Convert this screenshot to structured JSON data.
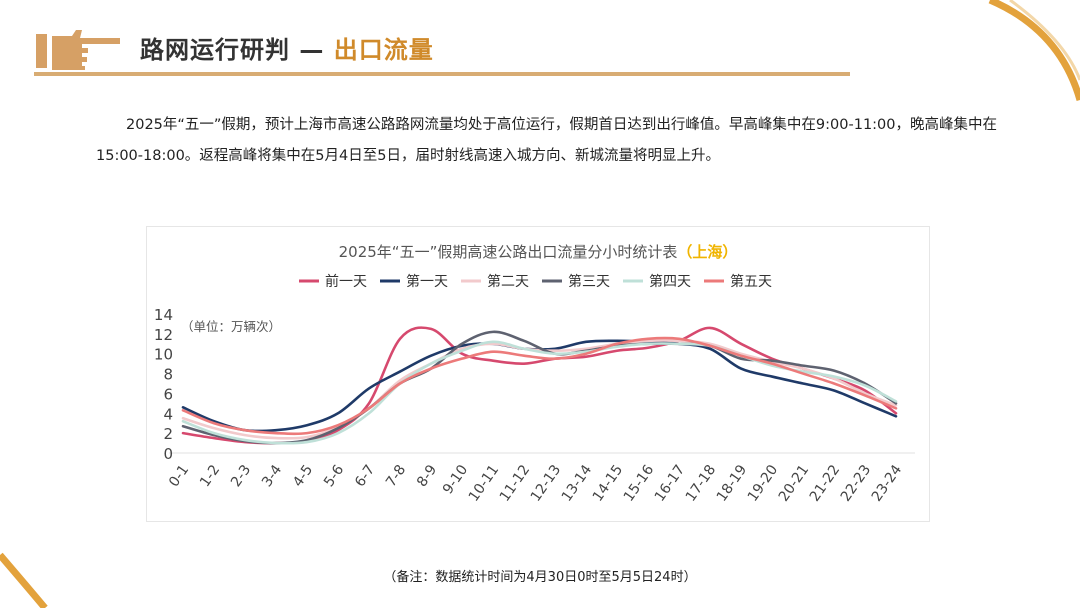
{
  "header": {
    "title_main": "路网运行研判 —",
    "title_accent": "出口流量",
    "accent_color": "#d08a2a",
    "icon": "pointing-hand-icon"
  },
  "paragraph": "2025年“五一”假期，预计上海市高速公路路网流量均处于高位运行，假期首日达到出行峰值。早高峰集中在9:00-11:00，晚高峰集中在15:00-18:00。返程高峰将集中在5月4日至5日，届时射线高速入城方向、新城流量将明显上升。",
  "note": "（备注：数据统计时间为4月30日0时至5月5日24时）",
  "chart_data": {
    "type": "line",
    "title": "2025年“五一”假期高速公路出口流量分小时统计表",
    "title_accent": "（上海）",
    "unit_label": "（单位：万辆次）",
    "ylim": [
      0,
      14
    ],
    "yticks": [
      0,
      2,
      4,
      6,
      8,
      10,
      12,
      14
    ],
    "grid": false,
    "legend": "top",
    "categories": [
      "0-1",
      "1-2",
      "2-3",
      "3-4",
      "4-5",
      "5-6",
      "6-7",
      "7-8",
      "8-9",
      "9-10",
      "10-11",
      "11-12",
      "12-13",
      "13-14",
      "14-15",
      "15-16",
      "16-17",
      "17-18",
      "18-19",
      "19-20",
      "20-21",
      "21-22",
      "22-23",
      "23-24"
    ],
    "series": [
      {
        "name": "前一天",
        "color": "#d6496e",
        "values": [
          2.0,
          1.5,
          1.1,
          1.0,
          1.2,
          2.3,
          5.0,
          11.5,
          12.5,
          10.0,
          9.3,
          9.0,
          9.5,
          9.7,
          10.3,
          10.6,
          11.3,
          12.6,
          11.0,
          9.5,
          8.5,
          7.5,
          6.3,
          4.0
        ]
      },
      {
        "name": "第一天",
        "color": "#1f3a68",
        "values": [
          4.6,
          3.2,
          2.3,
          2.3,
          2.8,
          4.0,
          6.5,
          8.2,
          9.8,
          10.8,
          11.0,
          10.5,
          10.5,
          11.2,
          11.3,
          11.2,
          11.0,
          10.5,
          8.5,
          7.7,
          7.0,
          6.3,
          5.0,
          3.7
        ]
      },
      {
        "name": "第二天",
        "color": "#f2cacc",
        "values": [
          3.5,
          2.5,
          1.8,
          1.5,
          1.6,
          2.6,
          4.5,
          7.3,
          9.0,
          10.5,
          11.0,
          10.5,
          10.3,
          10.5,
          11.0,
          11.3,
          11.3,
          11.0,
          10.0,
          9.2,
          8.5,
          7.5,
          6.0,
          4.8
        ]
      },
      {
        "name": "第三天",
        "color": "#5e6270",
        "values": [
          2.7,
          1.8,
          1.2,
          1.0,
          1.3,
          2.5,
          4.5,
          7.0,
          8.5,
          11.0,
          12.2,
          11.3,
          10.0,
          10.3,
          10.8,
          11.0,
          11.0,
          10.8,
          9.5,
          9.3,
          8.8,
          8.3,
          7.0,
          5.0
        ]
      },
      {
        "name": "第四天",
        "color": "#bfe0d8",
        "values": [
          3.2,
          2.0,
          1.3,
          1.0,
          1.1,
          2.0,
          4.0,
          7.0,
          9.0,
          10.3,
          11.2,
          10.5,
          10.0,
          10.2,
          10.7,
          11.0,
          11.0,
          10.8,
          9.8,
          8.8,
          8.2,
          7.7,
          6.8,
          5.2
        ]
      },
      {
        "name": "第五天",
        "color": "#ec7a7a",
        "values": [
          4.3,
          3.0,
          2.3,
          2.0,
          2.0,
          2.8,
          4.5,
          7.0,
          8.5,
          9.5,
          10.2,
          9.8,
          9.5,
          10.0,
          11.0,
          11.5,
          11.5,
          10.8,
          9.8,
          9.0,
          8.0,
          7.0,
          5.8,
          4.5
        ]
      }
    ]
  }
}
